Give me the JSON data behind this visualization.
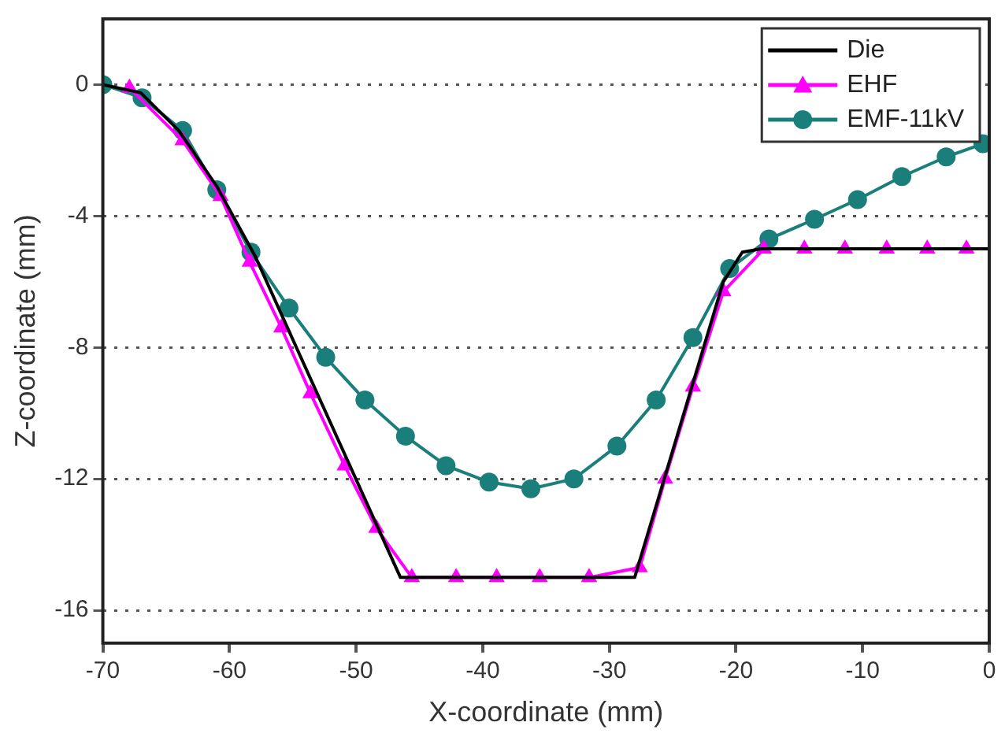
{
  "chart_data": {
    "type": "line",
    "xlabel": "X-coordinate (mm)",
    "ylabel": "Z-coordinate (mm)",
    "xlim": [
      -70,
      0
    ],
    "ylim": [
      -17,
      2
    ],
    "xticks": [
      -70,
      -60,
      -50,
      -40,
      -30,
      -20,
      -10,
      0
    ],
    "yticks": [
      0,
      -4,
      -8,
      -12,
      -16
    ],
    "grid": "y",
    "legend": "top right",
    "line_style": "solid",
    "series": [
      {
        "name": "Die",
        "color": "#000000",
        "marker": "none",
        "x": [
          -70,
          -67,
          -64,
          -61,
          -58,
          -46.5,
          -28,
          -21,
          -19.5,
          -18,
          0
        ],
        "values": [
          0,
          -0.25,
          -1.4,
          -3.1,
          -5.2,
          -15,
          -15,
          -6,
          -5.1,
          -5,
          -5
        ]
      },
      {
        "name": "EHF",
        "color": "#ff00ff",
        "marker": "triangle",
        "x": [
          -67.9,
          -63.7,
          -60.7,
          -58.4,
          -55.9,
          -53.6,
          -50.9,
          -48.4,
          -45.6,
          -42.1,
          -38.9,
          -35.5,
          -31.6,
          -27.6,
          -25.6,
          -23.4,
          -21,
          -17.8,
          -14.6,
          -11.4,
          -8.1,
          -4.9,
          -1.8
        ],
        "values": [
          -0.1,
          -1.7,
          -3.4,
          -5.4,
          -7.4,
          -9.4,
          -11.6,
          -13.5,
          -15,
          -15,
          -15,
          -15,
          -15,
          -14.7,
          -12,
          -9.2,
          -6.3,
          -5,
          -5,
          -5,
          -5,
          -5,
          -5
        ]
      },
      {
        "name": "EMF-11kV",
        "color": "#1a7f7a",
        "marker": "circle",
        "x": [
          -70,
          -66.9,
          -63.7,
          -61,
          -58.3,
          -55.3,
          -52.4,
          -49.3,
          -46.1,
          -42.9,
          -39.5,
          -36.2,
          -32.8,
          -29.4,
          -26.3,
          -23.4,
          -20.5,
          -17.4,
          -13.8,
          -10.4,
          -6.9,
          -3.4,
          -0.5
        ],
        "values": [
          0,
          -0.4,
          -1.4,
          -3.2,
          -5.1,
          -6.8,
          -8.3,
          -9.6,
          -10.7,
          -11.6,
          -12.1,
          -12.3,
          -12,
          -11,
          -9.6,
          -7.7,
          -5.6,
          -4.7,
          -4.1,
          -3.5,
          -2.8,
          -2.2,
          -1.8
        ]
      }
    ]
  }
}
